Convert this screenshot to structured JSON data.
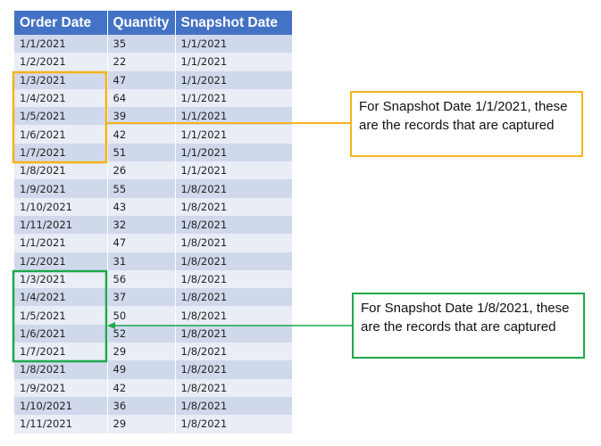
{
  "table": {
    "headers": [
      "Order Date",
      "Quantity",
      "Snapshot Date"
    ],
    "rows": [
      [
        "1/1/2021",
        "35",
        "1/1/2021"
      ],
      [
        "1/2/2021",
        "22",
        "1/1/2021"
      ],
      [
        "1/3/2021",
        "47",
        "1/1/2021"
      ],
      [
        "1/4/2021",
        "64",
        "1/1/2021"
      ],
      [
        "1/5/2021",
        "39",
        "1/1/2021"
      ],
      [
        "1/6/2021",
        "42",
        "1/1/2021"
      ],
      [
        "1/7/2021",
        "51",
        "1/1/2021"
      ],
      [
        "1/8/2021",
        "26",
        "1/1/2021"
      ],
      [
        "1/9/2021",
        "55",
        "1/8/2021"
      ],
      [
        "1/10/2021",
        "43",
        "1/8/2021"
      ],
      [
        "1/11/2021",
        "32",
        "1/8/2021"
      ],
      [
        "1/1/2021",
        "47",
        "1/8/2021"
      ],
      [
        "1/2/2021",
        "31",
        "1/8/2021"
      ],
      [
        "1/3/2021",
        "56",
        "1/8/2021"
      ],
      [
        "1/4/2021",
        "37",
        "1/8/2021"
      ],
      [
        "1/5/2021",
        "50",
        "1/8/2021"
      ],
      [
        "1/6/2021",
        "52",
        "1/8/2021"
      ],
      [
        "1/7/2021",
        "29",
        "1/8/2021"
      ],
      [
        "1/8/2021",
        "49",
        "1/8/2021"
      ],
      [
        "1/9/2021",
        "42",
        "1/8/2021"
      ],
      [
        "1/10/2021",
        "36",
        "1/8/2021"
      ],
      [
        "1/11/2021",
        "29",
        "1/8/2021"
      ]
    ]
  },
  "callouts": [
    {
      "text": "For Snapshot Date 1/1/2021, these are the records that are captured",
      "color": "#f5b41c",
      "highlight_rows": [
        2,
        6
      ]
    },
    {
      "text": "For Snapshot Date 1/8/2021, these are the records that are captured",
      "color": "#1ea84b",
      "highlight_rows": [
        13,
        17
      ]
    }
  ]
}
